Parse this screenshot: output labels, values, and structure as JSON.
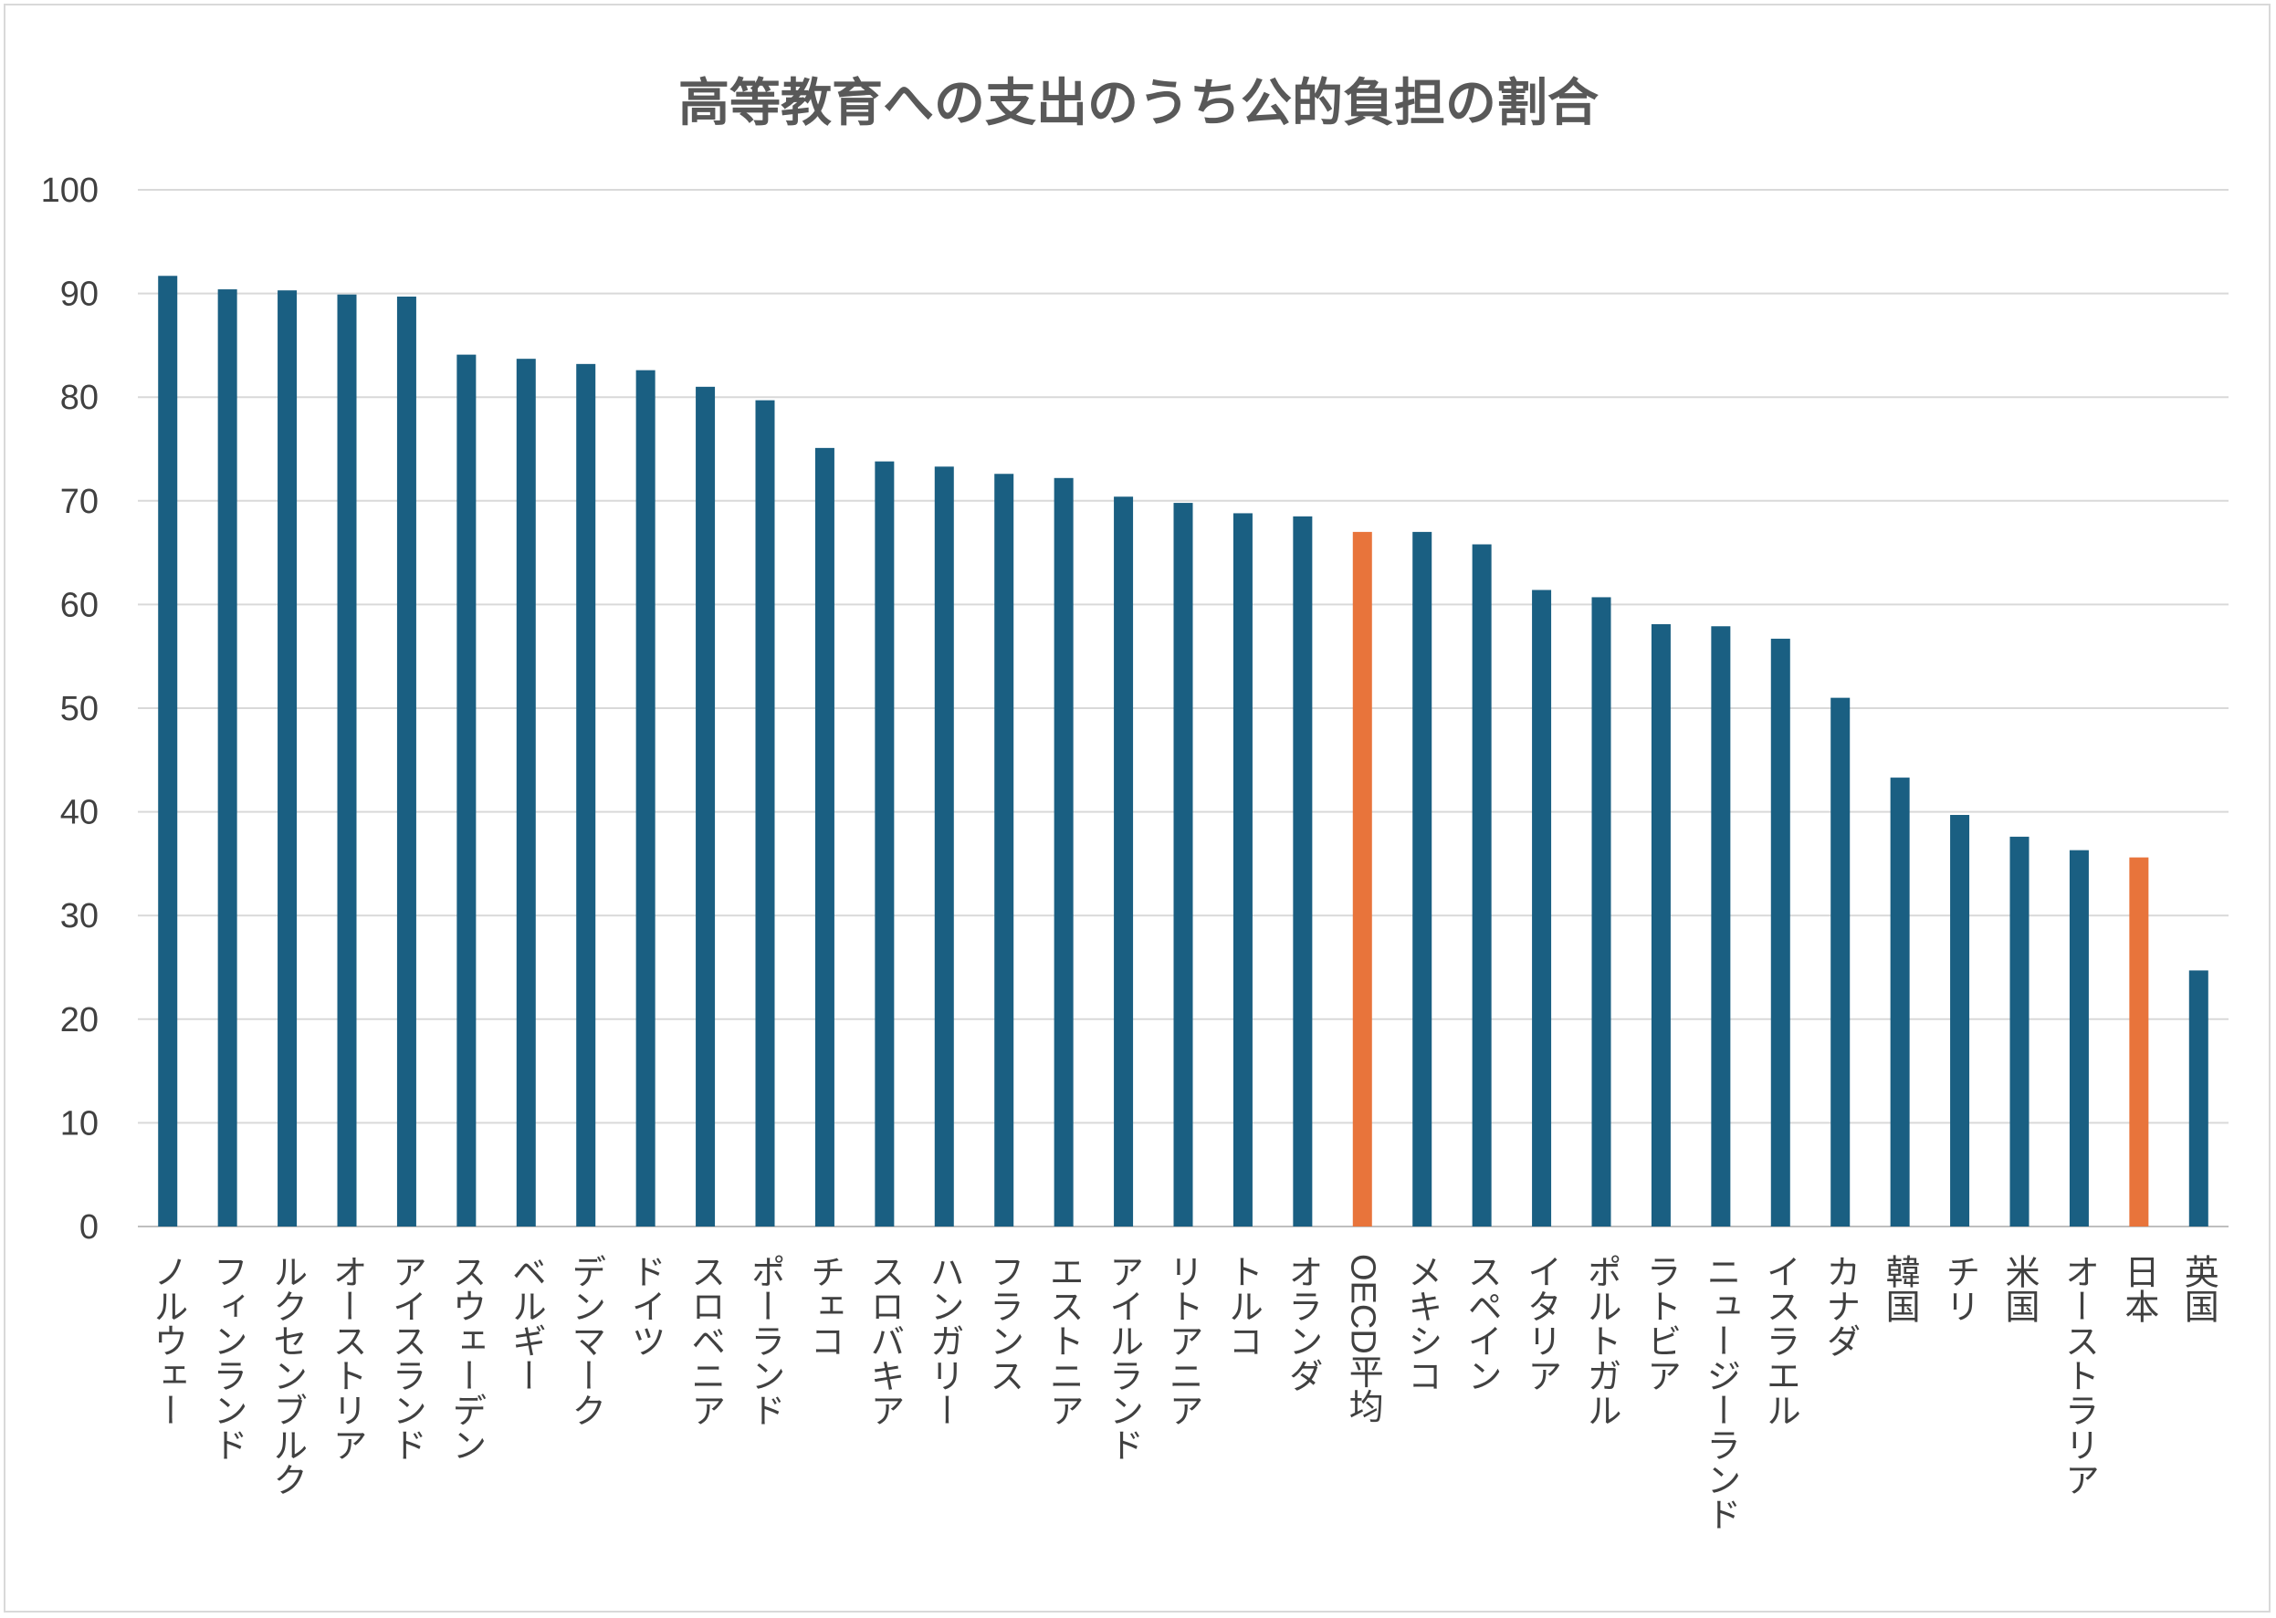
{
  "chart_data": {
    "type": "bar",
    "title": "高等教育への支出のうち公的負担の割合",
    "xlabel": "",
    "ylabel": "",
    "ylim": [
      0,
      100
    ],
    "yticks": [
      0,
      10,
      20,
      30,
      40,
      50,
      60,
      70,
      80,
      90,
      100
    ],
    "grid": true,
    "legend": "none",
    "categories": [
      "ノルウェー",
      "フィンランド",
      "ルクセンブルク",
      "オーストリア",
      "アイスランド",
      "スウェーデン",
      "ベルギー",
      "デンマーク",
      "ドイツ",
      "スロベニア",
      "ポーランド",
      "チェコ",
      "スロバキア",
      "ハンガリー",
      "フランス",
      "エストニア",
      "アイルランド",
      "リトアニア",
      "トルコ",
      "オランダ",
      "OECD平均",
      "メキシコ",
      "スペイン",
      "イタリア",
      "ポルトガル",
      "ラトビア",
      "ニュージーランド",
      "イスラエル",
      "カナダ",
      "韓国",
      "チリ",
      "米国",
      "オーストラリア",
      "日本",
      "英国"
    ],
    "values": [
      91.7,
      90.4,
      90.3,
      89.9,
      89.7,
      84.1,
      83.7,
      83.2,
      82.6,
      81.0,
      79.7,
      75.1,
      73.8,
      73.3,
      72.6,
      72.2,
      70.4,
      69.8,
      68.8,
      68.5,
      67.0,
      67.0,
      65.8,
      61.4,
      60.7,
      58.1,
      57.9,
      56.7,
      51.0,
      43.3,
      39.7,
      37.6,
      36.3,
      35.6,
      24.7
    ],
    "colors": {
      "default": "#1a5f82",
      "highlight": "#e8743b",
      "gridline": "#d9d9d9",
      "axis": "#bfbfbf"
    },
    "highlighted_categories": [
      "OECD平均",
      "日本"
    ]
  }
}
